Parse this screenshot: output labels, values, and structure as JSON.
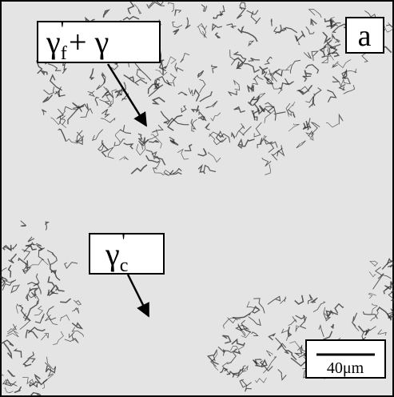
{
  "panel_label": "a",
  "annotations": [
    {
      "symbol": "γ",
      "subscript": "f",
      "superscript": "'",
      "suffix": "+ γ"
    },
    {
      "symbol": "γ",
      "subscript": "c",
      "superscript": "'"
    }
  ],
  "scale_bar": {
    "label": "40μm"
  }
}
